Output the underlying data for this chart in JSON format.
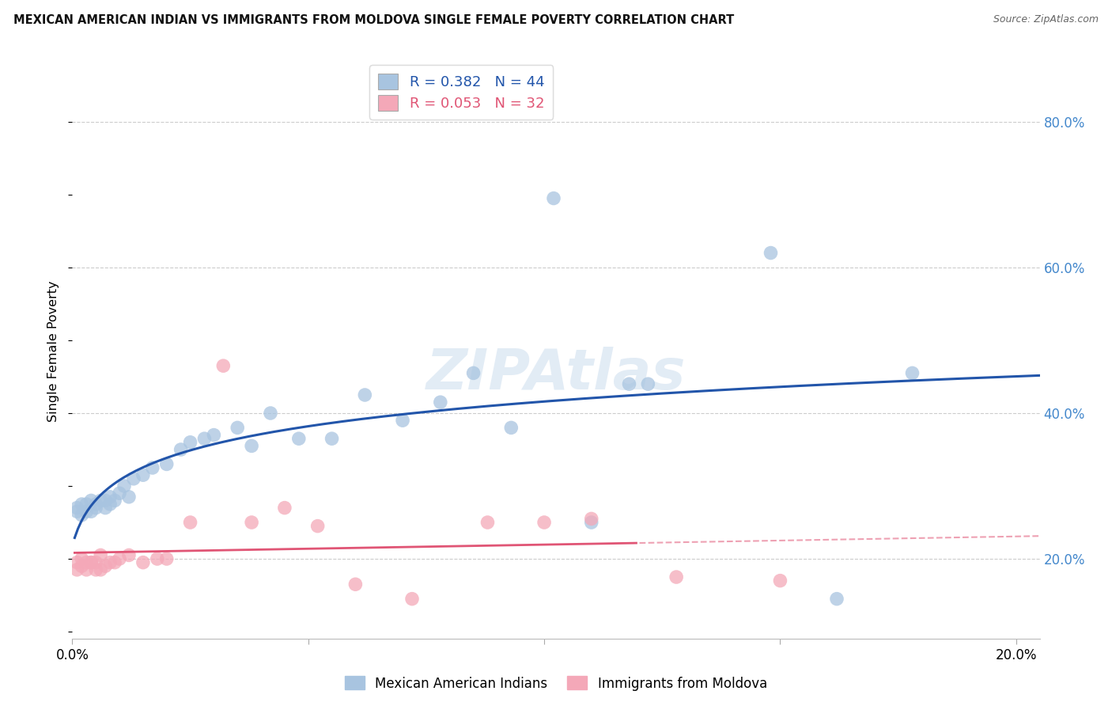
{
  "title": "MEXICAN AMERICAN INDIAN VS IMMIGRANTS FROM MOLDOVA SINGLE FEMALE POVERTY CORRELATION CHART",
  "source": "Source: ZipAtlas.com",
  "ylabel": "Single Female Poverty",
  "xlim": [
    0.0,
    0.205
  ],
  "ylim": [
    0.09,
    0.88
  ],
  "x_ticks": [
    0.0,
    0.05,
    0.1,
    0.15,
    0.2
  ],
  "y_ticks_right": [
    0.2,
    0.4,
    0.6,
    0.8
  ],
  "legend_blue_r": "R = 0.382",
  "legend_blue_n": "N = 44",
  "legend_pink_r": "R = 0.053",
  "legend_pink_n": "N = 32",
  "legend_label_blue": "Mexican American Indians",
  "legend_label_pink": "Immigrants from Moldova",
  "blue_color": "#A8C4E0",
  "pink_color": "#F4A8B8",
  "trend_blue_color": "#2255AA",
  "trend_pink_color": "#E05575",
  "watermark": "ZIPAtlas",
  "blue_x": [
    0.001,
    0.001,
    0.002,
    0.002,
    0.003,
    0.003,
    0.004,
    0.004,
    0.005,
    0.005,
    0.006,
    0.007,
    0.007,
    0.008,
    0.008,
    0.009,
    0.01,
    0.011,
    0.012,
    0.013,
    0.015,
    0.017,
    0.02,
    0.023,
    0.025,
    0.028,
    0.03,
    0.035,
    0.038,
    0.042,
    0.048,
    0.055,
    0.062,
    0.07,
    0.078,
    0.085,
    0.093,
    0.102,
    0.11,
    0.118,
    0.122,
    0.148,
    0.162,
    0.178
  ],
  "blue_y": [
    0.265,
    0.27,
    0.26,
    0.275,
    0.265,
    0.275,
    0.265,
    0.28,
    0.27,
    0.275,
    0.28,
    0.27,
    0.28,
    0.275,
    0.285,
    0.28,
    0.29,
    0.3,
    0.285,
    0.31,
    0.315,
    0.325,
    0.33,
    0.35,
    0.36,
    0.365,
    0.37,
    0.38,
    0.355,
    0.4,
    0.365,
    0.365,
    0.425,
    0.39,
    0.415,
    0.455,
    0.38,
    0.695,
    0.25,
    0.44,
    0.44,
    0.62,
    0.145,
    0.455
  ],
  "pink_x": [
    0.001,
    0.001,
    0.002,
    0.002,
    0.003,
    0.003,
    0.004,
    0.004,
    0.005,
    0.005,
    0.006,
    0.006,
    0.007,
    0.008,
    0.009,
    0.01,
    0.012,
    0.015,
    0.018,
    0.02,
    0.025,
    0.032,
    0.038,
    0.045,
    0.052,
    0.06,
    0.072,
    0.088,
    0.1,
    0.11,
    0.128,
    0.15
  ],
  "pink_y": [
    0.195,
    0.185,
    0.19,
    0.2,
    0.185,
    0.195,
    0.195,
    0.195,
    0.185,
    0.195,
    0.185,
    0.205,
    0.19,
    0.195,
    0.195,
    0.2,
    0.205,
    0.195,
    0.2,
    0.2,
    0.25,
    0.465,
    0.25,
    0.27,
    0.245,
    0.165,
    0.145,
    0.25,
    0.25,
    0.255,
    0.175,
    0.17
  ]
}
